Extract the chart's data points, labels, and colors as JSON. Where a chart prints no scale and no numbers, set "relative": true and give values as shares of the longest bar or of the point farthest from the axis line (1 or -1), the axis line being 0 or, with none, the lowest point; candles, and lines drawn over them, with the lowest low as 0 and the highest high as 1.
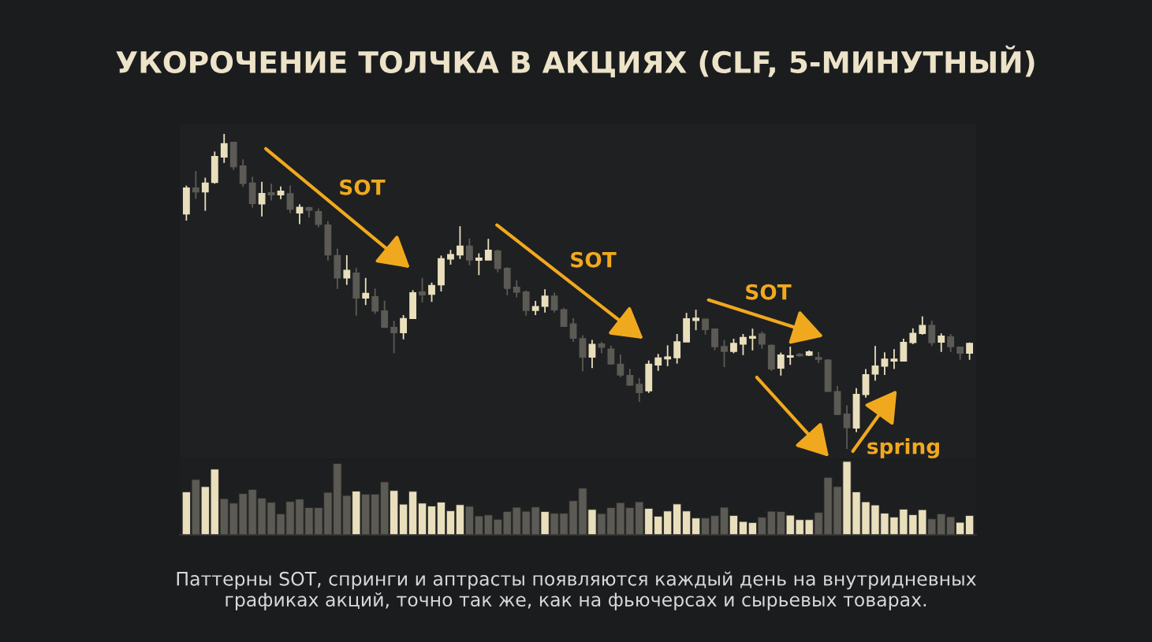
{
  "chart_data": [
    {
      "type": "candlestick",
      "title": "УКОРОЧЕНИЕ ТОЛЧКА В АКЦИЯХ (CLF, 5-МИНУТНЫЙ)",
      "relative": true,
      "categories": [
        null,
        null,
        null,
        null,
        null,
        null,
        null,
        null,
        null,
        null,
        null,
        null,
        null,
        null,
        null,
        null,
        null,
        null,
        null,
        null,
        null,
        null,
        null,
        null,
        null,
        null,
        null,
        null,
        null,
        null,
        null,
        null,
        null,
        null,
        null,
        null,
        null,
        null,
        null,
        null,
        null,
        null,
        null,
        null,
        null,
        null,
        null,
        null,
        null,
        null,
        null,
        null,
        null,
        null,
        null,
        null,
        null,
        null,
        null,
        null,
        null,
        null,
        null,
        null,
        null,
        null,
        null,
        null,
        null,
        null,
        null,
        null,
        null,
        null,
        null,
        null,
        null,
        null,
        null,
        null,
        null,
        null,
        null,
        null
      ],
      "ohlc": [
        [
          0.746,
          0.836,
          0.725,
          0.828
        ],
        [
          0.828,
          0.882,
          0.794,
          0.816
        ],
        [
          0.816,
          0.861,
          0.756,
          0.844
        ],
        [
          0.846,
          0.944,
          0.842,
          0.928
        ],
        [
          0.927,
          1.0,
          0.908,
          0.969
        ],
        [
          0.973,
          0.973,
          0.886,
          0.896
        ],
        [
          0.898,
          0.919,
          0.832,
          0.843
        ],
        [
          0.844,
          0.864,
          0.766,
          0.779
        ],
        [
          0.778,
          0.848,
          0.738,
          0.811
        ],
        [
          0.813,
          0.842,
          0.789,
          0.807
        ],
        [
          0.807,
          0.833,
          0.793,
          0.818
        ],
        [
          0.81,
          0.836,
          0.748,
          0.761
        ],
        [
          0.749,
          0.777,
          0.714,
          0.767
        ],
        [
          0.766,
          0.769,
          0.735,
          0.758
        ],
        [
          0.753,
          0.763,
          0.704,
          0.713
        ],
        [
          0.711,
          0.723,
          0.598,
          0.616
        ],
        [
          0.614,
          0.636,
          0.508,
          0.543
        ],
        [
          0.543,
          0.615,
          0.521,
          0.567
        ],
        [
          0.558,
          0.575,
          0.423,
          0.479
        ],
        [
          0.479,
          0.543,
          0.457,
          0.494
        ],
        [
          0.483,
          0.509,
          0.429,
          0.438
        ],
        [
          0.438,
          0.471,
          0.385,
          0.386
        ],
        [
          0.386,
          0.407,
          0.304,
          0.369
        ],
        [
          0.369,
          0.425,
          0.348,
          0.414
        ],
        [
          0.414,
          0.504,
          0.414,
          0.496
        ],
        [
          0.498,
          0.543,
          0.465,
          0.489
        ],
        [
          0.491,
          0.528,
          0.467,
          0.519
        ],
        [
          0.521,
          0.614,
          0.5,
          0.604
        ],
        [
          0.603,
          0.632,
          0.585,
          0.617
        ],
        [
          0.616,
          0.707,
          0.603,
          0.644
        ],
        [
          0.644,
          0.668,
          0.583,
          0.6
        ],
        [
          0.599,
          0.621,
          0.552,
          0.606
        ],
        [
          0.6,
          0.667,
          0.6,
          0.631
        ],
        [
          0.628,
          0.633,
          0.561,
          0.573
        ],
        [
          0.573,
          0.577,
          0.488,
          0.51
        ],
        [
          0.513,
          0.535,
          0.481,
          0.498
        ],
        [
          0.498,
          0.503,
          0.423,
          0.44
        ],
        [
          0.44,
          0.47,
          0.425,
          0.452
        ],
        [
          0.453,
          0.507,
          0.433,
          0.485
        ],
        [
          0.485,
          0.496,
          0.433,
          0.442
        ],
        [
          0.442,
          0.448,
          0.389,
          0.389
        ],
        [
          0.397,
          0.415,
          0.34,
          0.352
        ],
        [
          0.35,
          0.361,
          0.246,
          0.292
        ],
        [
          0.292,
          0.346,
          0.257,
          0.332
        ],
        [
          0.333,
          0.34,
          0.304,
          0.323
        ],
        [
          0.317,
          0.328,
          0.268,
          0.27
        ],
        [
          0.269,
          0.3,
          0.228,
          0.235
        ],
        [
          0.233,
          0.254,
          0.2,
          0.203
        ],
        [
          0.205,
          0.225,
          0.15,
          0.179
        ],
        [
          0.185,
          0.281,
          0.178,
          0.269
        ],
        [
          0.267,
          0.302,
          0.248,
          0.289
        ],
        [
          0.286,
          0.329,
          0.263,
          0.292
        ],
        [
          0.29,
          0.365,
          0.271,
          0.34
        ],
        [
          0.34,
          0.432,
          0.34,
          0.413
        ],
        [
          0.408,
          0.442,
          0.377,
          0.415
        ],
        [
          0.412,
          0.413,
          0.363,
          0.379
        ],
        [
          0.381,
          0.381,
          0.313,
          0.325
        ],
        [
          0.325,
          0.346,
          0.26,
          0.31
        ],
        [
          0.31,
          0.35,
          0.304,
          0.335
        ],
        [
          0.333,
          0.365,
          0.298,
          0.354
        ],
        [
          0.352,
          0.382,
          0.313,
          0.357
        ],
        [
          0.365,
          0.373,
          0.318,
          0.333
        ],
        [
          0.329,
          0.332,
          0.248,
          0.254
        ],
        [
          0.257,
          0.306,
          0.233,
          0.298
        ],
        [
          0.292,
          0.325,
          0.267,
          0.296
        ],
        [
          0.3,
          0.305,
          0.293,
          0.296
        ],
        [
          0.298,
          0.313,
          0.295,
          0.308
        ],
        [
          0.29,
          0.308,
          0.273,
          0.285
        ],
        [
          0.282,
          0.285,
          0.182,
          0.183
        ],
        [
          0.182,
          0.2,
          0.108,
          0.11
        ],
        [
          0.111,
          0.138,
          0.0,
          0.068
        ],
        [
          0.067,
          0.193,
          0.054,
          0.173
        ],
        [
          0.173,
          0.254,
          0.163,
          0.236
        ],
        [
          0.238,
          0.327,
          0.217,
          0.263
        ],
        [
          0.263,
          0.307,
          0.235,
          0.285
        ],
        [
          0.279,
          0.317,
          0.254,
          0.285
        ],
        [
          0.279,
          0.35,
          0.278,
          0.338
        ],
        [
          0.338,
          0.383,
          0.333,
          0.367
        ],
        [
          0.367,
          0.421,
          0.363,
          0.392
        ],
        [
          0.392,
          0.407,
          0.327,
          0.338
        ],
        [
          0.339,
          0.367,
          0.308,
          0.358
        ],
        [
          0.356,
          0.365,
          0.308,
          0.325
        ],
        [
          0.323,
          0.325,
          0.283,
          0.304
        ],
        [
          0.304,
          0.338,
          0.283,
          0.335
        ]
      ],
      "colors": [
        "#e9dfbc",
        "#5c5a54",
        "#e9dfbc",
        "#e9dfbc",
        "#e9dfbc",
        "#5c5a54",
        "#5c5a54",
        "#5c5a54",
        "#e9dfbc",
        "#5c5a54",
        "#e9dfbc",
        "#5c5a54",
        "#e9dfbc",
        "#5c5a54",
        "#5c5a54",
        "#5c5a54",
        "#5c5a54",
        "#e9dfbc",
        "#5c5a54",
        "#e9dfbc",
        "#5c5a54",
        "#5c5a54",
        "#5c5a54",
        "#e9dfbc",
        "#e9dfbc",
        "#5c5a54",
        "#e9dfbc",
        "#e9dfbc",
        "#e9dfbc",
        "#e9dfbc",
        "#5c5a54",
        "#e9dfbc",
        "#e9dfbc",
        "#5c5a54",
        "#5c5a54",
        "#5c5a54",
        "#5c5a54",
        "#e9dfbc",
        "#e9dfbc",
        "#5c5a54",
        "#5c5a54",
        "#5c5a54",
        "#5c5a54",
        "#e9dfbc",
        "#5c5a54",
        "#5c5a54",
        "#5c5a54",
        "#5c5a54",
        "#5c5a54",
        "#e9dfbc",
        "#e9dfbc",
        "#e9dfbc",
        "#e9dfbc",
        "#e9dfbc",
        "#e9dfbc",
        "#5c5a54",
        "#5c5a54",
        "#5c5a54",
        "#e9dfbc",
        "#e9dfbc",
        "#e9dfbc",
        "#5c5a54",
        "#5c5a54",
        "#e9dfbc",
        "#e9dfbc",
        "#5c5a54",
        "#e9dfbc",
        "#5c5a54",
        "#5c5a54",
        "#5c5a54",
        "#5c5a54",
        "#e9dfbc",
        "#e9dfbc",
        "#e9dfbc",
        "#e9dfbc",
        "#e9dfbc",
        "#e9dfbc",
        "#e9dfbc",
        "#e9dfbc",
        "#5c5a54",
        "#e9dfbc",
        "#5c5a54",
        "#5c5a54",
        "#e9dfbc"
      ],
      "annotations": [
        "SOT",
        "SOT",
        "SOT",
        "spring"
      ]
    },
    {
      "type": "bar",
      "relative": true,
      "categories": [
        null,
        null,
        null,
        null,
        null,
        null,
        null,
        null,
        null,
        null,
        null,
        null,
        null,
        null,
        null,
        null,
        null,
        null,
        null,
        null,
        null,
        null,
        null,
        null,
        null,
        null,
        null,
        null,
        null,
        null,
        null,
        null,
        null,
        null,
        null,
        null,
        null,
        null,
        null,
        null,
        null,
        null,
        null,
        null,
        null,
        null,
        null,
        null,
        null,
        null,
        null,
        null,
        null,
        null,
        null,
        null,
        null,
        null,
        null,
        null,
        null,
        null,
        null,
        null,
        null,
        null,
        null,
        null,
        null,
        null,
        null,
        null,
        null,
        null,
        null,
        null,
        null,
        null,
        null,
        null,
        null,
        null,
        null,
        null
      ],
      "values": [
        0.586,
        0.754,
        0.657,
        0.896,
        0.493,
        0.432,
        0.561,
        0.618,
        0.5,
        0.443,
        0.286,
        0.454,
        0.486,
        0.371,
        0.371,
        0.579,
        0.971,
        0.536,
        0.596,
        0.554,
        0.554,
        0.721,
        0.604,
        0.418,
        0.593,
        0.432,
        0.393,
        0.446,
        0.329,
        0.411,
        0.389,
        0.257,
        0.271,
        0.211,
        0.318,
        0.375,
        0.321,
        0.379,
        0.318,
        0.293,
        0.293,
        0.464,
        0.636,
        0.346,
        0.289,
        0.371,
        0.439,
        0.371,
        0.45,
        0.361,
        0.254,
        0.325,
        0.421,
        0.325,
        0.229,
        0.229,
        0.261,
        0.375,
        0.264,
        0.182,
        0.168,
        0.239,
        0.321,
        0.318,
        0.268,
        0.207,
        0.207,
        0.304,
        0.782,
        0.657,
        1,
        0.586,
        0.45,
        0.407,
        0.296,
        0.243,
        0.35,
        0.275,
        0.343,
        0.218,
        0.286,
        0.246,
        0.171,
        0.264
      ],
      "colors": [
        "#e9dfbc",
        "#5c5a54",
        "#e9dfbc",
        "#e9dfbc",
        "#5c5a54",
        "#5c5a54",
        "#5c5a54",
        "#5c5a54",
        "#5c5a54",
        "#5c5a54",
        "#5c5a54",
        "#5c5a54",
        "#5c5a54",
        "#5c5a54",
        "#5c5a54",
        "#5c5a54",
        "#5c5a54",
        "#5c5a54",
        "#e9dfbc",
        "#5c5a54",
        "#5c5a54",
        "#5c5a54",
        "#e9dfbc",
        "#e9dfbc",
        "#e9dfbc",
        "#e9dfbc",
        "#e9dfbc",
        "#e9dfbc",
        "#e9dfbc",
        "#e9dfbc",
        "#5c5a54",
        "#5c5a54",
        "#5c5a54",
        "#5c5a54",
        "#5c5a54",
        "#5c5a54",
        "#5c5a54",
        "#5c5a54",
        "#e9dfbc",
        "#5c5a54",
        "#5c5a54",
        "#5c5a54",
        "#5c5a54",
        "#e9dfbc",
        "#5c5a54",
        "#5c5a54",
        "#5c5a54",
        "#5c5a54",
        "#5c5a54",
        "#e9dfbc",
        "#e9dfbc",
        "#e9dfbc",
        "#e9dfbc",
        "#e9dfbc",
        "#e9dfbc",
        "#5c5a54",
        "#5c5a54",
        "#5c5a54",
        "#e9dfbc",
        "#e9dfbc",
        "#e9dfbc",
        "#5c5a54",
        "#5c5a54",
        "#5c5a54",
        "#e9dfbc",
        "#e9dfbc",
        "#e9dfbc",
        "#5c5a54",
        "#5c5a54",
        "#5c5a54",
        "#e9dfbc",
        "#e9dfbc",
        "#e9dfbc",
        "#e9dfbc",
        "#e9dfbc",
        "#e9dfbc",
        "#e9dfbc",
        "#e9dfbc",
        "#e9dfbc",
        "#5c5a54",
        "#5c5a54",
        "#5c5a54",
        "#e9dfbc",
        "#e9dfbc"
      ],
      "annotations": [
        "Паттерны SOT, спринги и аптрасты появляются каждый день на внутридневных\nграфиках акций, точно так же, как на фьючерсах и сырьевых товарах."
      ]
    }
  ]
}
